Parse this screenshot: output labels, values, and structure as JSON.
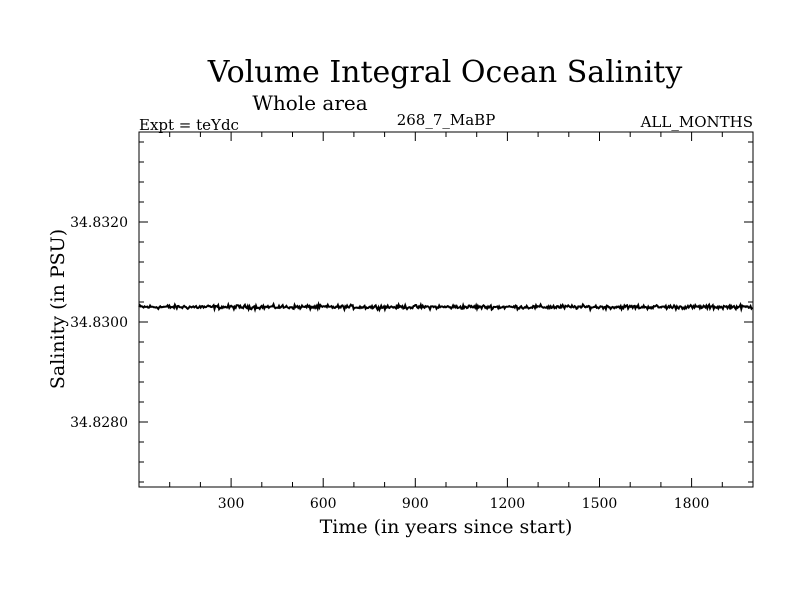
{
  "chart_data": {
    "type": "line",
    "title": "Volume Integral Ocean Salinity",
    "subtitle": "Whole area",
    "expt_label": "Expt = teYdc",
    "run_label": "268_7_MaBP",
    "months_label": "ALL_MONTHS",
    "xlabel": "Time (in years since start)",
    "ylabel": "Salinity (in PSU)",
    "xlim": [
      0,
      2000
    ],
    "ylim": [
      34.8267,
      34.8338
    ],
    "x_ticks": [
      300,
      600,
      900,
      1200,
      1500,
      1800
    ],
    "x_tick_labels": [
      "300",
      "600",
      "900",
      "1200",
      "1500",
      "1800"
    ],
    "y_ticks": [
      34.828,
      34.83,
      34.832
    ],
    "y_tick_labels": [
      "34.8280",
      "34.8300",
      "34.8320"
    ],
    "series": [
      {
        "name": "Salinity",
        "color": "#000000",
        "mean": 34.8303,
        "noise_amplitude": 6e-05,
        "x_start": 0,
        "x_end": 2000
      }
    ]
  }
}
